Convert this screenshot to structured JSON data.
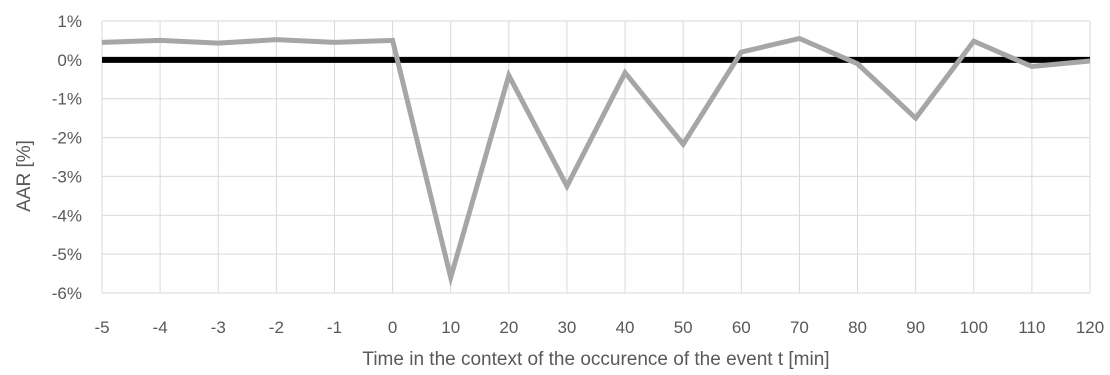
{
  "chart_data": {
    "type": "line",
    "title": "",
    "xlabel": "Time in the context of the occurence of the event t [min]",
    "ylabel": "AAR [%]",
    "categories": [
      "-5",
      "-4",
      "-3",
      "-2",
      "-1",
      "0",
      "10",
      "20",
      "30",
      "40",
      "50",
      "60",
      "70",
      "80",
      "90",
      "100",
      "110",
      "120"
    ],
    "series": [
      {
        "values": [
          0.45,
          0.5,
          0.43,
          0.52,
          0.45,
          0.5,
          -5.6,
          -0.4,
          -3.25,
          -0.33,
          -2.17,
          0.2,
          0.55,
          -0.1,
          -1.5,
          0.48,
          -0.17,
          -0.03
        ],
        "color": "#a6a6a6"
      }
    ],
    "ylim": [
      -6,
      1
    ],
    "yticks": [
      "1%",
      "0%",
      "-1%",
      "-2%",
      "-3%",
      "-4%",
      "-5%",
      "-6%"
    ],
    "grid": true,
    "zero_line_color": "#000000",
    "grid_color": "#d9d9d9"
  }
}
